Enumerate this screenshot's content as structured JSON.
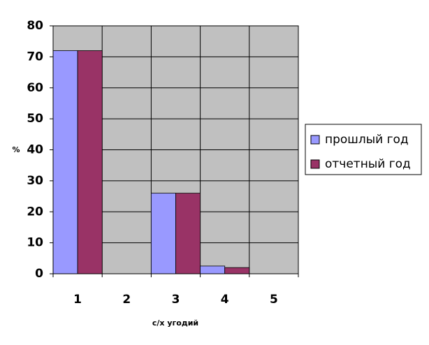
{
  "chart_data": {
    "type": "bar",
    "x_label": "с/х угодий",
    "y_label": "%",
    "categories": [
      "1",
      "2",
      "3",
      "4",
      "5"
    ],
    "series": [
      {
        "name": "прошлый год",
        "color": "#9999ff",
        "values": [
          72,
          0,
          26,
          2.5,
          0
        ]
      },
      {
        "name": "отчетный год",
        "color": "#993366",
        "values": [
          72,
          0,
          26,
          2,
          0
        ]
      }
    ],
    "ylim": [
      0,
      80
    ],
    "yticks": [
      0,
      10,
      20,
      30,
      40,
      50,
      60,
      70,
      80
    ],
    "grid": true,
    "plot_background": "#c0c0c0",
    "legend": "right"
  }
}
